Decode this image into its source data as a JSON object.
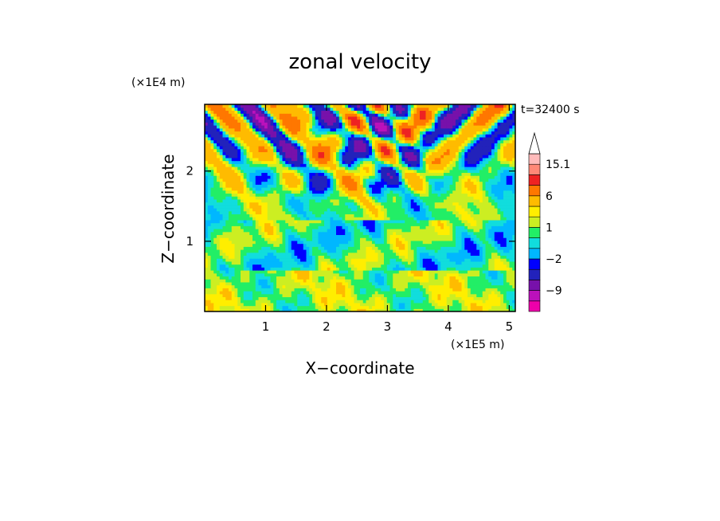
{
  "chart_data": {
    "type": "heatmap",
    "title": "zonal velocity",
    "time_label": "t=32400 s",
    "xlabel": "X−coordinate",
    "ylabel": "Z−coordinate",
    "x_scale_label": "(×1E5 m)",
    "y_scale_label": "(×1E4 m)",
    "xlim": [
      0,
      5.1
    ],
    "ylim": [
      0,
      2.95
    ],
    "x_ticks": [
      1,
      2,
      3,
      4,
      5
    ],
    "x_tick_labels": [
      "1",
      "2",
      "3",
      "4",
      "5"
    ],
    "y_ticks": [
      1,
      2
    ],
    "y_tick_labels": [
      "1",
      "2"
    ],
    "colorbar": {
      "levels": [
        -15,
        -12,
        -9,
        -6,
        -3,
        -2,
        -1,
        0,
        1,
        2,
        3,
        6,
        9,
        12,
        15.1
      ],
      "colors": [
        "#ee00aa",
        "#bb11bb",
        "#7711aa",
        "#2222bb",
        "#0000ff",
        "#00b7ff",
        "#11dddd",
        "#22ee66",
        "#ccee22",
        "#ffee00",
        "#ffbb00",
        "#ff7700",
        "#ee2222",
        "#ff8877",
        "#ffbbbb"
      ],
      "labels": [
        {
          "value": -9,
          "text": "−9"
        },
        {
          "value": -2,
          "text": "−2"
        },
        {
          "value": 1,
          "text": "1"
        },
        {
          "value": 6,
          "text": "6"
        },
        {
          "value": 15.1,
          "text": "15.1"
        }
      ],
      "extend": "max"
    },
    "field": {
      "description": "zonal velocity contour field (z vs x)",
      "bands": [
        {
          "z_from": 0.0,
          "z_to": 0.6,
          "dominant": [
            1,
            2,
            0
          ]
        },
        {
          "z_from": 0.6,
          "z_to": 1.4,
          "dominant": [
            0,
            1,
            -1
          ]
        },
        {
          "z_from": 1.4,
          "z_to": 2.95,
          "dominant": [
            3,
            -3,
            6
          ]
        }
      ]
    }
  }
}
